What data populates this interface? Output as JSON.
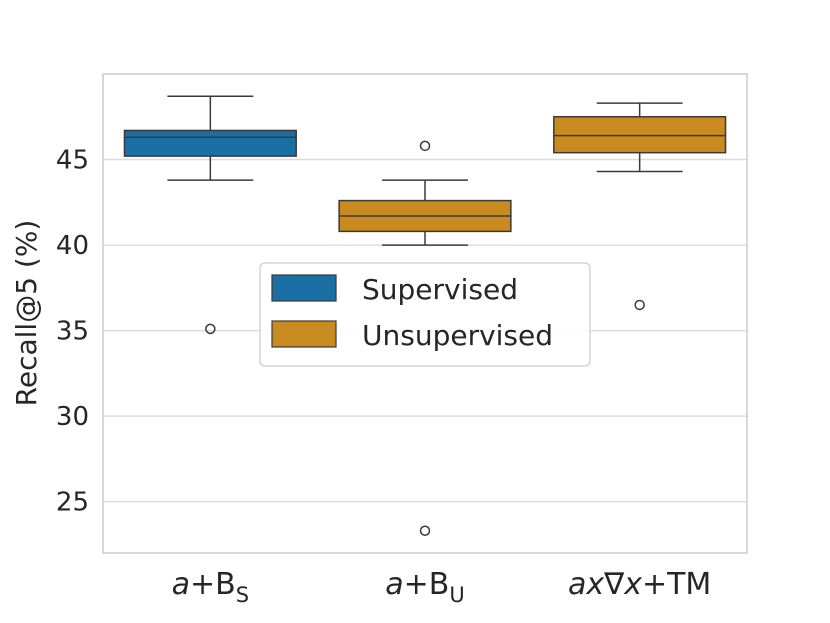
{
  "chart_data": {
    "type": "box",
    "ylabel": "Recall@5 (%)",
    "ylim": [
      22,
      50
    ],
    "yticks": [
      25,
      30,
      35,
      40,
      45
    ],
    "grid": true,
    "legend": {
      "placement": "center",
      "entries": [
        {
          "name": "Supervised",
          "color": "#1a6fa4"
        },
        {
          "name": "Unsupervised",
          "color": "#c98a1f"
        }
      ]
    },
    "categories": [
      {
        "prefix": "a",
        "mid": "+B",
        "sub": "S",
        "parts": null
      },
      {
        "prefix": "a",
        "mid": "+B",
        "sub": "U",
        "parts": null
      },
      {
        "prefix": null,
        "mid": null,
        "sub": null,
        "parts": [
          {
            "t": "ax",
            "i": true
          },
          {
            "t": "∇",
            "i": false
          },
          {
            "t": "x",
            "i": true
          },
          {
            "t": "+TM",
            "i": false
          }
        ]
      }
    ],
    "boxes": [
      {
        "group": "Supervised",
        "whisker_low": 43.8,
        "q1": 45.2,
        "median": 46.3,
        "q3": 46.7,
        "whisker_high": 48.7,
        "outliers": [
          35.1
        ]
      },
      {
        "group": "Unsupervised",
        "whisker_low": 40.0,
        "q1": 40.8,
        "median": 41.7,
        "q3": 42.6,
        "whisker_high": 43.8,
        "outliers": [
          45.8,
          23.3
        ]
      },
      {
        "group": "Unsupervised",
        "whisker_low": 44.3,
        "q1": 45.4,
        "median": 46.4,
        "q3": 47.5,
        "whisker_high": 48.3,
        "outliers": [
          36.5
        ]
      }
    ]
  }
}
